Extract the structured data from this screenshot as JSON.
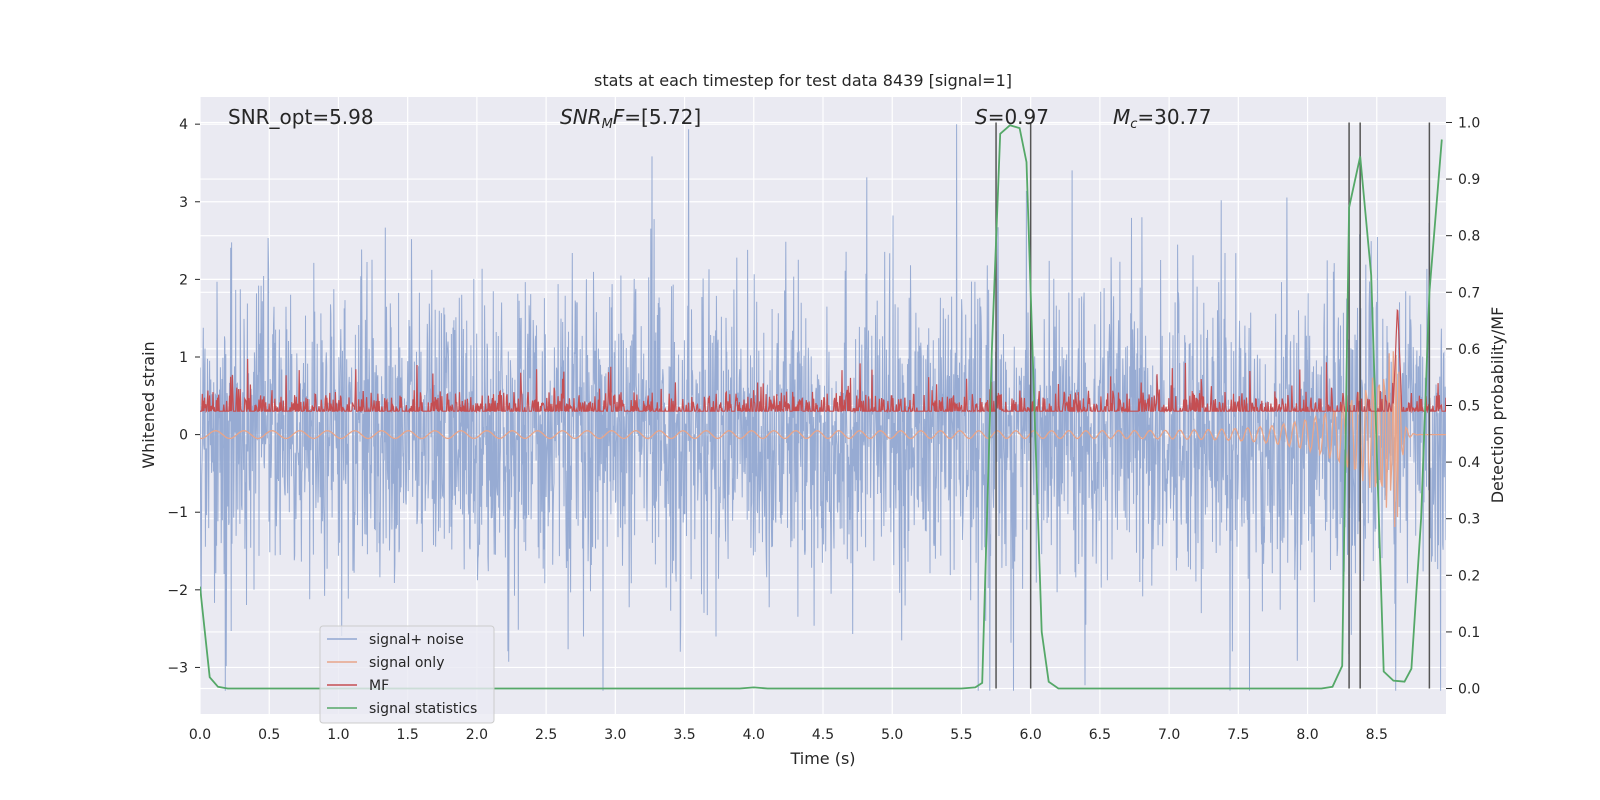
{
  "chart_data": {
    "type": "line",
    "title": "stats at each timestep for test data 8439 [signal=1]",
    "xlabel": "Time (s)",
    "ylabel_left": "Whitened strain",
    "ylabel_right": "Detection probability/MF",
    "xlim": [
      0.0,
      9.0
    ],
    "ylim_left": [
      -3.6,
      4.35
    ],
    "ylim_right": [
      -0.045,
      1.045
    ],
    "xticks": [
      0.0,
      0.5,
      1.0,
      1.5,
      2.0,
      2.5,
      3.0,
      3.5,
      4.0,
      4.5,
      5.0,
      5.5,
      6.0,
      6.5,
      7.0,
      7.5,
      8.0,
      8.5
    ],
    "xtick_labels": [
      "0.0",
      "0.5",
      "1.0",
      "1.5",
      "2.0",
      "2.5",
      "3.0",
      "3.5",
      "4.0",
      "4.5",
      "5.0",
      "5.5",
      "6.0",
      "6.5",
      "7.0",
      "7.5",
      "8.0",
      "8.5"
    ],
    "yticks_left": [
      4,
      3,
      2,
      1,
      0,
      -1,
      -2,
      -3
    ],
    "ytick_labels_left": [
      "4",
      "3",
      "2",
      "1",
      "0",
      "−1",
      "−2",
      "−3"
    ],
    "yticks_right": [
      1.0,
      0.9,
      0.8,
      0.7,
      0.6,
      0.5,
      0.4,
      0.3,
      0.2,
      0.1,
      0.0
    ],
    "ytick_labels_right": [
      "1.0",
      "0.9",
      "0.8",
      "0.7",
      "0.6",
      "0.5",
      "0.4",
      "0.3",
      "0.2",
      "0.1",
      "0.0"
    ],
    "grid": true,
    "legend_location": "lower-left",
    "annotations": {
      "snr_opt": "SNR_opt=5.98",
      "snr_mf_main": "SNR",
      "snr_mf_sub": "M",
      "snr_mf_f": "F",
      "snr_mf_value": "=[5.72]",
      "s_symbol": "S",
      "s_value": "=0.97",
      "mc_symbol": "M",
      "mc_sub": "c",
      "mc_value": "=30.77"
    },
    "series": [
      {
        "name": "signal+ noise",
        "color": "#92a8d1",
        "kind": "noise",
        "amplitude_range": [
          -3.3,
          4.0
        ]
      },
      {
        "name": "signal only",
        "color": "#e8a58a",
        "kind": "chirp",
        "peak_time": 8.65,
        "peak_amplitude": 1.3,
        "trough_amplitude": -1.3
      },
      {
        "name": "MF",
        "color": "#c44e52",
        "kind": "matched_filter",
        "baseline_range": [
          0.05,
          0.5
        ],
        "peak_time": 8.65,
        "peak_value": 1.35
      },
      {
        "name": "signal statistics",
        "color": "#55a868",
        "kind": "probability",
        "x": [
          0.0,
          0.07,
          0.13,
          0.2,
          0.3,
          3.9,
          4.0,
          4.1,
          5.5,
          5.6,
          5.65,
          5.72,
          5.78,
          5.85,
          5.92,
          5.97,
          6.02,
          6.08,
          6.13,
          6.2,
          8.1,
          8.18,
          8.25,
          8.3,
          8.38,
          8.46,
          8.55,
          8.62,
          8.7,
          8.75,
          8.82,
          8.88,
          8.97
        ],
        "y": [
          0.18,
          0.02,
          0.003,
          0.0,
          0.0,
          0.0,
          0.002,
          0.0,
          0.0,
          0.002,
          0.01,
          0.6,
          0.98,
          0.995,
          0.99,
          0.93,
          0.55,
          0.1,
          0.012,
          0.0,
          0.0,
          0.003,
          0.04,
          0.85,
          0.94,
          0.73,
          0.03,
          0.014,
          0.012,
          0.035,
          0.3,
          0.7,
          0.97
        ]
      }
    ],
    "vertical_lines": [
      5.75,
      6.0,
      8.3,
      8.38,
      8.88
    ]
  }
}
